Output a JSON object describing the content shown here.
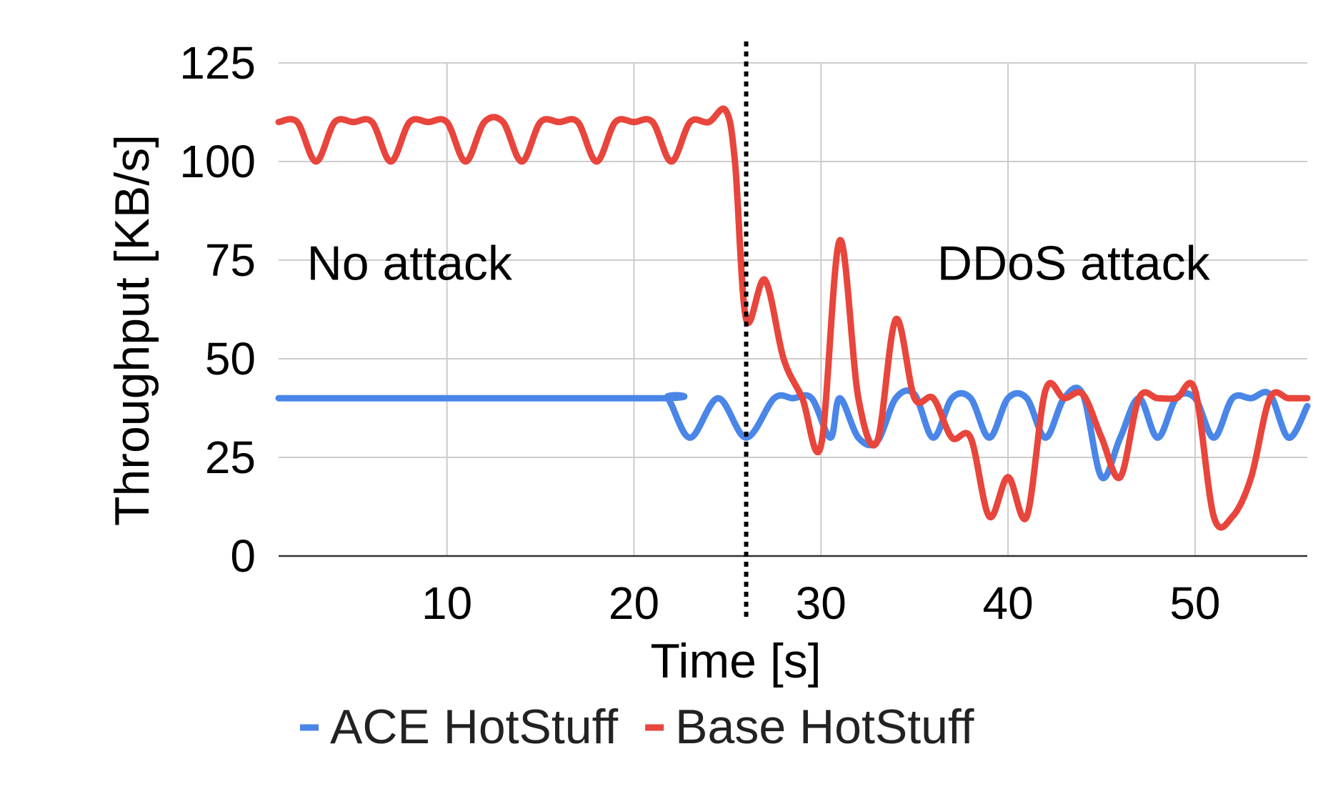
{
  "chart_data": {
    "type": "line",
    "xlabel": "Time [s]",
    "ylabel": "Throughput [KB/s]",
    "xlim": [
      1,
      56
    ],
    "ylim": [
      0,
      125
    ],
    "x_ticks": [
      10,
      20,
      30,
      40,
      50
    ],
    "y_ticks": [
      0,
      25,
      50,
      75,
      100,
      125
    ],
    "grid": true,
    "legend_position": "bottom",
    "event_marker": {
      "x": 26,
      "style": "dotted"
    },
    "annotations": [
      {
        "text": "No attack",
        "x": 8,
        "y": 70
      },
      {
        "text": "DDoS attack",
        "x": 43.5,
        "y": 70
      }
    ],
    "series": [
      {
        "name": "ACE HotStuff",
        "color": "#4a86e8",
        "points": [
          [
            1,
            40
          ],
          [
            21,
            40
          ],
          [
            21.8,
            40
          ],
          [
            23,
            30
          ],
          [
            24.5,
            40
          ],
          [
            26,
            30
          ],
          [
            27.5,
            40
          ],
          [
            28.5,
            40
          ],
          [
            29.5,
            40
          ],
          [
            30.5,
            30
          ],
          [
            31,
            40
          ],
          [
            32,
            30
          ],
          [
            33,
            29
          ],
          [
            34,
            40
          ],
          [
            35,
            41
          ],
          [
            36,
            30
          ],
          [
            37,
            40
          ],
          [
            38,
            40
          ],
          [
            39,
            30
          ],
          [
            40,
            40
          ],
          [
            41,
            40
          ],
          [
            42,
            30
          ],
          [
            43,
            40
          ],
          [
            44,
            41
          ],
          [
            45,
            20
          ],
          [
            46,
            30
          ],
          [
            47,
            40
          ],
          [
            48,
            30
          ],
          [
            49,
            40
          ],
          [
            50,
            40
          ],
          [
            51,
            30
          ],
          [
            52,
            40
          ],
          [
            53,
            40
          ],
          [
            54,
            41
          ],
          [
            55,
            30
          ],
          [
            56,
            38
          ]
        ]
      },
      {
        "name": "Base HotStuff",
        "color": "#e8453c",
        "points": [
          [
            1,
            110
          ],
          [
            2,
            110
          ],
          [
            3,
            100
          ],
          [
            4,
            110
          ],
          [
            5,
            110
          ],
          [
            6,
            110
          ],
          [
            7,
            100
          ],
          [
            8,
            110
          ],
          [
            9,
            110
          ],
          [
            10,
            110
          ],
          [
            11,
            100
          ],
          [
            12,
            110
          ],
          [
            13,
            110
          ],
          [
            14,
            100
          ],
          [
            15,
            110
          ],
          [
            16,
            110
          ],
          [
            17,
            110
          ],
          [
            18,
            100
          ],
          [
            19,
            110
          ],
          [
            20,
            110
          ],
          [
            21,
            110
          ],
          [
            22,
            100
          ],
          [
            23,
            110
          ],
          [
            24,
            110
          ],
          [
            24.9,
            113
          ],
          [
            25.4,
            100
          ],
          [
            26,
            60
          ],
          [
            27,
            70
          ],
          [
            28,
            50
          ],
          [
            29,
            40
          ],
          [
            30,
            28
          ],
          [
            31,
            80
          ],
          [
            32,
            40
          ],
          [
            33,
            29
          ],
          [
            34,
            60
          ],
          [
            35,
            40
          ],
          [
            36,
            40
          ],
          [
            37,
            30
          ],
          [
            38,
            30
          ],
          [
            39,
            10
          ],
          [
            40,
            20
          ],
          [
            41,
            10
          ],
          [
            42,
            42
          ],
          [
            43,
            40
          ],
          [
            44,
            41
          ],
          [
            45,
            30
          ],
          [
            46,
            20
          ],
          [
            47,
            40
          ],
          [
            48,
            40
          ],
          [
            49,
            40
          ],
          [
            50,
            42
          ],
          [
            51,
            10
          ],
          [
            52,
            10
          ],
          [
            53,
            20
          ],
          [
            54,
            40
          ],
          [
            55,
            40
          ],
          [
            56,
            40
          ]
        ]
      }
    ]
  }
}
